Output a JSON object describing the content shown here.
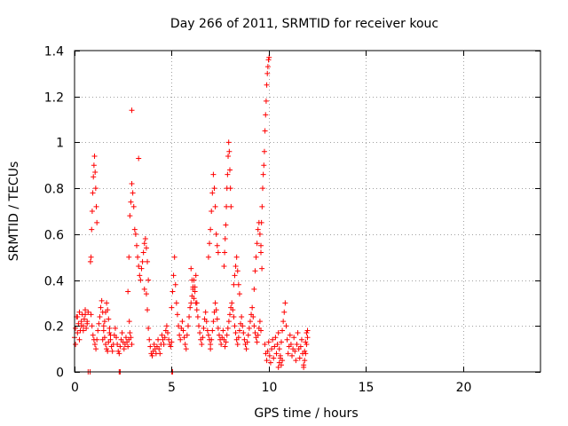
{
  "chart_data": {
    "type": "scatter",
    "title": "Day 266 of 2011, SRMTID for receiver kouc",
    "xlabel": "GPS time / hours",
    "ylabel": "SRMTID / TECUs",
    "xlim": [
      0,
      24
    ],
    "ylim": [
      0,
      1.4
    ],
    "xticks": [
      0,
      5,
      10,
      15,
      20
    ],
    "xtick_labels": [
      "0",
      "5",
      "10",
      "15",
      "20"
    ],
    "yticks": [
      0,
      0.2,
      0.4,
      0.6,
      0.8,
      1.0,
      1.2,
      1.4
    ],
    "ytick_labels": [
      "0",
      "0.2",
      "0.4",
      "0.6",
      "0.8",
      "1",
      "1.2",
      "1.4"
    ],
    "grid": true,
    "marker": "+",
    "color": "#ff0000",
    "series": [
      {
        "name": "SRMTID",
        "x": [
          0.0,
          0.05,
          0.1,
          0.15,
          0.2,
          0.25,
          0.3,
          0.35,
          0.4,
          0.45,
          0.5,
          0.55,
          0.6,
          0.65,
          0.7,
          0.05,
          0.15,
          0.25,
          0.35,
          0.45,
          0.55,
          0.65,
          0.82,
          0.85,
          0.88,
          0.91,
          0.94,
          0.97,
          1.0,
          1.03,
          1.06,
          1.09,
          1.12,
          1.15,
          0.85,
          0.9,
          0.95,
          1.0,
          1.05,
          1.1,
          1.15,
          1.2,
          1.25,
          1.3,
          1.35,
          1.4,
          1.45,
          1.5,
          1.55,
          1.6,
          1.65,
          1.7,
          1.75,
          1.8,
          1.85,
          1.9,
          1.95,
          2.0,
          2.05,
          2.1,
          2.15,
          2.2,
          2.25,
          2.3,
          2.35,
          2.4,
          2.45,
          2.5,
          2.55,
          2.6,
          2.65,
          2.7,
          2.75,
          2.8,
          2.85,
          2.9,
          2.95,
          1.45,
          1.5,
          1.55,
          1.6,
          1.65,
          1.7,
          1.75,
          1.8,
          1.85,
          2.75,
          2.8,
          2.85,
          2.9,
          2.95,
          3.0,
          3.05,
          3.1,
          3.15,
          3.2,
          3.25,
          3.3,
          3.35,
          3.4,
          3.45,
          3.5,
          3.55,
          3.6,
          3.65,
          3.7,
          3.75,
          3.8,
          2.82,
          2.95,
          3.3,
          3.6,
          3.7,
          3.75,
          3.8,
          3.85,
          3.9,
          3.95,
          4.0,
          4.05,
          4.1,
          4.15,
          4.2,
          4.25,
          4.3,
          4.35,
          4.4,
          4.45,
          4.5,
          4.55,
          4.6,
          4.65,
          4.7,
          4.75,
          4.8,
          4.85,
          4.9,
          4.95,
          5.0,
          5.0,
          5.05,
          5.1,
          5.15,
          5.2,
          5.25,
          5.3,
          5.35,
          5.4,
          5.45,
          5.5,
          5.55,
          5.6,
          5.65,
          5.7,
          5.75,
          5.8,
          5.85,
          5.9,
          5.95,
          6.0,
          6.05,
          6.1,
          6.15,
          6.2,
          6.25,
          6.3,
          6.35,
          6.4,
          6.45,
          6.5,
          6.55,
          6.6,
          6.65,
          6.7,
          6.75,
          6.8,
          6.85,
          6.9,
          6.95,
          7.0,
          6.0,
          6.05,
          6.1,
          6.15,
          6.2,
          6.25,
          6.3,
          6.9,
          6.95,
          7.0,
          7.05,
          7.1,
          7.15,
          7.2,
          7.25,
          7.3,
          7.35,
          7.4,
          7.0,
          7.05,
          7.1,
          7.15,
          7.2,
          7.25,
          7.3,
          7.35,
          7.4,
          7.45,
          7.5,
          7.55,
          7.6,
          7.65,
          7.7,
          7.75,
          7.8,
          7.85,
          7.9,
          7.95,
          8.0,
          8.05,
          8.1,
          8.15,
          8.2,
          8.25,
          8.3,
          8.35,
          8.4,
          8.45,
          8.5,
          8.55,
          8.6,
          8.65,
          8.7,
          8.75,
          8.8,
          8.85,
          8.9,
          8.95,
          9.0,
          9.05,
          9.1,
          9.15,
          9.2,
          9.25,
          9.3,
          9.35,
          9.4,
          9.45,
          9.5,
          9.55,
          9.6,
          7.7,
          7.73,
          7.76,
          7.79,
          7.82,
          7.85,
          7.88,
          7.91,
          7.94,
          7.97,
          8.0,
          8.03,
          8.06,
          8.2,
          8.25,
          8.3,
          8.35,
          8.4,
          8.45,
          8.5,
          9.25,
          9.3,
          9.35,
          9.4,
          9.45,
          9.5,
          9.55,
          9.6,
          9.65,
          9.6,
          9.63,
          9.66,
          9.69,
          9.72,
          9.75,
          9.78,
          9.81,
          9.84,
          9.87,
          9.9,
          9.93,
          9.96,
          9.99,
          10.02,
          9.8,
          9.85,
          9.9,
          9.95,
          10.0,
          10.05,
          10.1,
          10.15,
          10.2,
          10.25,
          10.3,
          10.35,
          10.4,
          10.45,
          10.5,
          10.55,
          10.6,
          10.65,
          10.7,
          10.75,
          10.8,
          10.85,
          10.9,
          10.95,
          11.0,
          11.05,
          11.1,
          11.15,
          11.2,
          11.25,
          11.3,
          11.35,
          11.4,
          11.45,
          11.5,
          11.55,
          11.6,
          11.65,
          11.7,
          11.75,
          11.8,
          11.85,
          11.9,
          11.95,
          12.0,
          10.5,
          10.55,
          10.6,
          10.65,
          10.7,
          11.8,
          11.85,
          11.9,
          11.95,
          12.0,
          0.7,
          0.8,
          2.3,
          2.35,
          5.0,
          5.05
        ],
        "y": [
          0.15,
          0.19,
          0.24,
          0.17,
          0.21,
          0.26,
          0.18,
          0.22,
          0.25,
          0.2,
          0.23,
          0.27,
          0.19,
          0.22,
          0.26,
          0.12,
          0.24,
          0.14,
          0.2,
          0.18,
          0.25,
          0.21,
          0.48,
          0.5,
          0.62,
          0.7,
          0.78,
          0.85,
          0.9,
          0.94,
          0.87,
          0.8,
          0.72,
          0.65,
          0.25,
          0.2,
          0.16,
          0.14,
          0.12,
          0.1,
          0.14,
          0.18,
          0.21,
          0.24,
          0.28,
          0.31,
          0.26,
          0.2,
          0.15,
          0.12,
          0.1,
          0.09,
          0.13,
          0.17,
          0.14,
          0.11,
          0.09,
          0.12,
          0.16,
          0.19,
          0.15,
          0.12,
          0.09,
          0.08,
          0.11,
          0.14,
          0.17,
          0.13,
          0.1,
          0.12,
          0.15,
          0.13,
          0.11,
          0.14,
          0.17,
          0.15,
          0.12,
          0.14,
          0.18,
          0.22,
          0.26,
          0.3,
          0.27,
          0.23,
          0.19,
          0.16,
          0.35,
          0.5,
          0.68,
          0.74,
          0.82,
          0.78,
          0.72,
          0.62,
          0.6,
          0.55,
          0.5,
          0.46,
          0.42,
          0.4,
          0.45,
          0.48,
          0.52,
          0.56,
          0.58,
          0.54,
          0.48,
          0.4,
          0.22,
          1.14,
          0.93,
          0.36,
          0.34,
          0.27,
          0.19,
          0.14,
          0.11,
          0.08,
          0.07,
          0.09,
          0.12,
          0.1,
          0.08,
          0.11,
          0.14,
          0.1,
          0.08,
          0.12,
          0.16,
          0.14,
          0.12,
          0.15,
          0.18,
          0.2,
          0.17,
          0.14,
          0.12,
          0.11,
          0.13,
          0.28,
          0.35,
          0.42,
          0.5,
          0.38,
          0.3,
          0.25,
          0.2,
          0.16,
          0.14,
          0.19,
          0.22,
          0.18,
          0.15,
          0.12,
          0.1,
          0.16,
          0.2,
          0.24,
          0.28,
          0.3,
          0.33,
          0.37,
          0.4,
          0.35,
          0.3,
          0.27,
          0.24,
          0.2,
          0.17,
          0.14,
          0.12,
          0.15,
          0.19,
          0.23,
          0.26,
          0.22,
          0.18,
          0.16,
          0.14,
          0.12,
          0.45,
          0.4,
          0.36,
          0.32,
          0.37,
          0.42,
          0.3,
          0.5,
          0.56,
          0.62,
          0.7,
          0.78,
          0.86,
          0.8,
          0.72,
          0.6,
          0.55,
          0.52,
          0.1,
          0.14,
          0.18,
          0.22,
          0.26,
          0.3,
          0.27,
          0.23,
          0.19,
          0.16,
          0.14,
          0.12,
          0.15,
          0.18,
          0.14,
          0.11,
          0.13,
          0.16,
          0.19,
          0.22,
          0.25,
          0.28,
          0.3,
          0.27,
          0.24,
          0.2,
          0.17,
          0.14,
          0.12,
          0.15,
          0.18,
          0.21,
          0.24,
          0.2,
          0.17,
          0.14,
          0.12,
          0.1,
          0.13,
          0.16,
          0.19,
          0.22,
          0.25,
          0.28,
          0.24,
          0.2,
          0.17,
          0.15,
          0.13,
          0.16,
          0.19,
          0.22,
          0.18,
          0.46,
          0.52,
          0.58,
          0.64,
          0.72,
          0.8,
          0.86,
          0.94,
          1.0,
          0.96,
          0.88,
          0.8,
          0.72,
          0.38,
          0.42,
          0.46,
          0.5,
          0.44,
          0.38,
          0.34,
          0.36,
          0.44,
          0.5,
          0.56,
          0.62,
          0.65,
          0.6,
          0.52,
          0.45,
          0.55,
          0.65,
          0.72,
          0.8,
          0.86,
          0.9,
          0.96,
          1.05,
          1.12,
          1.18,
          1.25,
          1.3,
          1.33,
          1.36,
          1.37,
          0.12,
          0.08,
          0.05,
          0.09,
          0.13,
          0.07,
          0.04,
          0.1,
          0.14,
          0.06,
          0.11,
          0.15,
          0.08,
          0.12,
          0.17,
          0.1,
          0.06,
          0.13,
          0.18,
          0.22,
          0.26,
          0.3,
          0.2,
          0.14,
          0.08,
          0.11,
          0.16,
          0.12,
          0.07,
          0.1,
          0.15,
          0.09,
          0.05,
          0.12,
          0.17,
          0.1,
          0.06,
          0.11,
          0.14,
          0.08,
          0.03,
          0.09,
          0.13,
          0.17,
          0.15,
          0.02,
          0.04,
          0.07,
          0.03,
          0.05,
          0.02,
          0.05,
          0.08,
          0.12,
          0.18,
          0.0,
          0.0,
          0.0,
          0.0,
          0.0,
          0.0
        ]
      }
    ]
  }
}
